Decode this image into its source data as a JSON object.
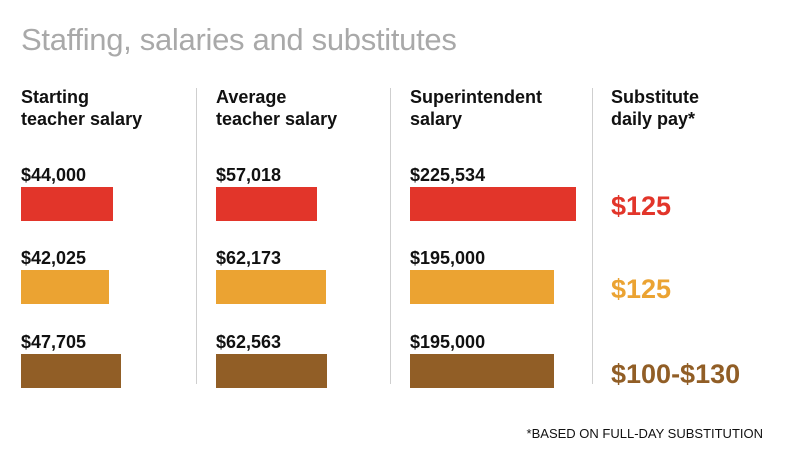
{
  "title": "Staffing, salaries and substitutes",
  "footnote": "*BASED ON FULL-DAY SUBSTITUTION",
  "colors": [
    "#e2352a",
    "#eba332",
    "#915e26"
  ],
  "chart_data": [
    {
      "type": "bar",
      "title": "Starting teacher salary",
      "values": [
        44000,
        42025,
        47705
      ],
      "labels": [
        "$44,000",
        "$42,025",
        "$47,705"
      ]
    },
    {
      "type": "bar",
      "title": "Average teacher salary",
      "values": [
        57018,
        62173,
        62563
      ],
      "labels": [
        "$57,018",
        "$62,173",
        "$62,563"
      ]
    },
    {
      "type": "bar",
      "title": "Superintendent salary",
      "values": [
        225534,
        195000,
        195000
      ],
      "labels": [
        "$225,534",
        "$195,000",
        "$195,000"
      ]
    },
    {
      "type": "table",
      "title": "Substitute daily pay*",
      "labels": [
        "$125",
        "$125",
        "$100-$130"
      ]
    }
  ]
}
